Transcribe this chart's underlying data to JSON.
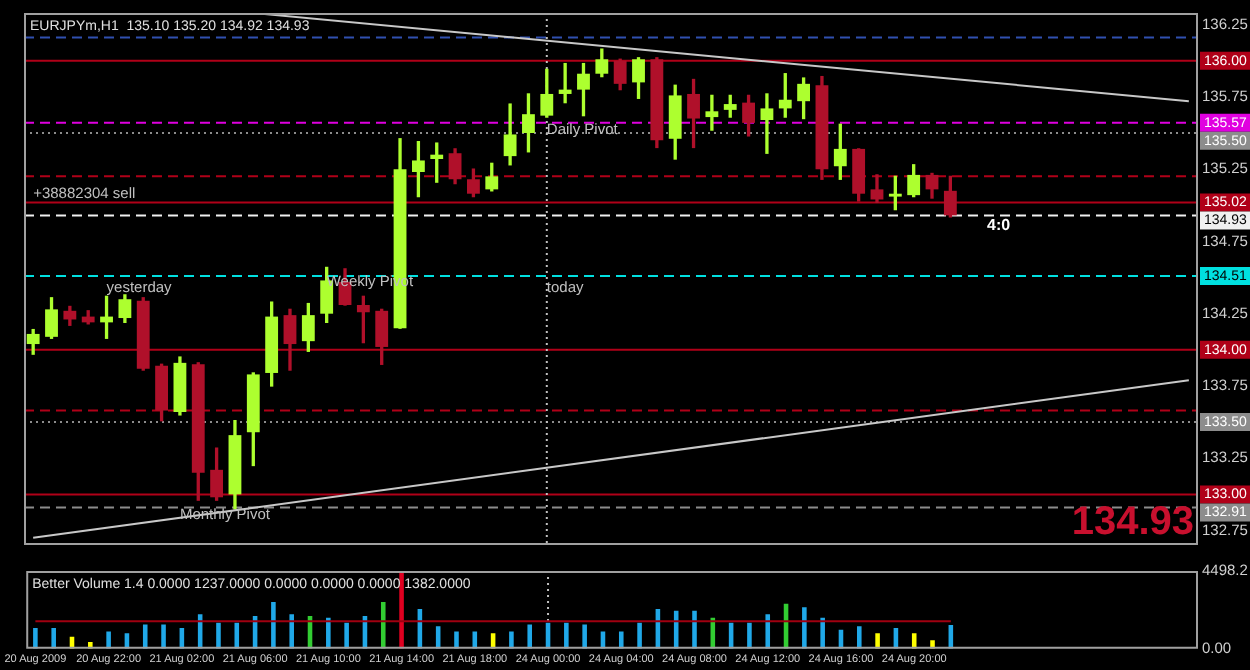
{
  "chart_data": [
    {
      "type": "candlestick",
      "title": "EURJPYm,H1  135.10 135.20 134.92 134.93",
      "categories": [
        "20 Aug 2009",
        null,
        null,
        null,
        "20 Aug 22:00",
        null,
        null,
        null,
        "21 Aug 02:00",
        null,
        null,
        null,
        "21 Aug 06:00",
        null,
        null,
        null,
        "21 Aug 10:00",
        null,
        null,
        null,
        "21 Aug 14:00",
        null,
        null,
        null,
        "21 Aug 18:00",
        null,
        null,
        null,
        "24 Aug 00:00",
        null,
        null,
        null,
        "24 Aug 04:00",
        null,
        null,
        null,
        "24 Aug 08:00",
        null,
        null,
        null,
        "24 Aug 12:00",
        null,
        null,
        null,
        "24 Aug 16:00",
        null,
        null,
        null,
        "24 Aug 20:00",
        null,
        null,
        null,
        null,
        null,
        null,
        null,
        null,
        null,
        null,
        null,
        null,
        null,
        null,
        null
      ],
      "ohlc": [
        [
          134.04,
          134.14,
          133.97,
          134.11
        ],
        [
          134.09,
          134.36,
          134.08,
          134.28
        ],
        [
          134.27,
          134.3,
          134.17,
          134.21
        ],
        [
          134.23,
          134.27,
          134.18,
          134.19
        ],
        [
          134.19,
          134.37,
          134.08,
          134.23
        ],
        [
          134.22,
          134.38,
          134.19,
          134.35
        ],
        [
          134.34,
          134.36,
          133.86,
          133.87
        ],
        [
          133.89,
          133.9,
          133.51,
          133.58
        ],
        [
          133.57,
          133.95,
          133.55,
          133.91
        ],
        [
          133.9,
          133.91,
          132.96,
          133.15
        ],
        [
          133.17,
          133.32,
          132.96,
          132.98
        ],
        [
          133.0,
          133.51,
          132.9,
          133.41
        ],
        [
          133.43,
          133.84,
          133.2,
          133.83
        ],
        [
          133.84,
          134.33,
          133.75,
          134.23
        ],
        [
          134.24,
          134.28,
          133.86,
          134.04
        ],
        [
          134.06,
          134.32,
          133.99,
          134.24
        ],
        [
          134.25,
          134.57,
          134.19,
          134.48
        ],
        [
          134.47,
          134.56,
          134.31,
          134.31
        ],
        [
          134.31,
          134.37,
          134.05,
          134.26
        ],
        [
          134.27,
          134.28,
          133.9,
          134.02
        ],
        [
          134.15,
          135.46,
          134.15,
          135.25
        ],
        [
          135.23,
          135.44,
          135.06,
          135.31
        ],
        [
          135.32,
          135.43,
          135.16,
          135.35
        ],
        [
          135.36,
          135.39,
          135.15,
          135.18
        ],
        [
          135.18,
          135.25,
          135.06,
          135.08
        ],
        [
          135.11,
          135.29,
          135.1,
          135.2
        ],
        [
          135.34,
          135.7,
          135.28,
          135.49
        ],
        [
          135.5,
          135.77,
          135.37,
          135.63
        ],
        [
          135.62,
          135.94,
          135.61,
          135.77
        ],
        [
          135.77,
          135.98,
          135.71,
          135.8
        ],
        [
          135.8,
          135.98,
          135.62,
          135.91
        ],
        [
          135.91,
          136.08,
          135.89,
          136.01
        ],
        [
          136.0,
          136.01,
          135.8,
          135.84
        ],
        [
          135.85,
          136.02,
          135.74,
          136.01
        ],
        [
          136.01,
          136.02,
          135.4,
          135.45
        ],
        [
          135.46,
          135.83,
          135.32,
          135.76
        ],
        [
          135.77,
          135.87,
          135.4,
          135.6
        ],
        [
          135.61,
          135.76,
          135.52,
          135.65
        ],
        [
          135.66,
          135.76,
          135.61,
          135.7
        ],
        [
          135.71,
          135.76,
          135.48,
          135.57
        ],
        [
          135.59,
          135.77,
          135.36,
          135.67
        ],
        [
          135.67,
          135.91,
          135.61,
          135.73
        ],
        [
          135.72,
          135.88,
          135.6,
          135.84
        ],
        [
          135.83,
          135.89,
          135.18,
          135.25
        ],
        [
          135.27,
          135.56,
          135.18,
          135.39
        ],
        [
          135.39,
          135.39,
          135.03,
          135.08
        ],
        [
          135.11,
          135.21,
          135.02,
          135.04
        ],
        [
          135.06,
          135.2,
          134.97,
          135.08
        ],
        [
          135.07,
          135.28,
          135.06,
          135.21
        ],
        [
          135.21,
          135.22,
          135.05,
          135.11
        ],
        [
          135.1,
          135.2,
          134.92,
          134.93
        ],
        null,
        null,
        null,
        null,
        null,
        null,
        null,
        null,
        null,
        null,
        null,
        null,
        null
      ],
      "colors": [
        "#adff2f",
        "#adff2f",
        "#b0102a",
        "#b0102a",
        "#adff2f",
        "#adff2f",
        "#b0102a",
        "#b0102a",
        "#adff2f",
        "#b0102a",
        "#b0102a",
        "#adff2f",
        "#adff2f",
        "#adff2f",
        "#b0102a",
        "#adff2f",
        "#adff2f",
        "#b0102a",
        "#b0102a",
        "#b0102a",
        "#adff2f",
        "#adff2f",
        "#adff2f",
        "#b0102a",
        "#b0102a",
        "#adff2f",
        "#adff2f",
        "#adff2f",
        "#adff2f",
        "#adff2f",
        "#adff2f",
        "#adff2f",
        "#b0102a",
        "#adff2f",
        "#b0102a",
        "#adff2f",
        "#b0102a",
        "#adff2f",
        "#adff2f",
        "#b0102a",
        "#adff2f",
        "#adff2f",
        "#adff2f",
        "#b0102a",
        "#adff2f",
        "#b0102a",
        "#b0102a",
        "#adff2f",
        "#adff2f",
        "#b0102a",
        "#b0102a",
        null,
        null,
        null,
        null,
        null,
        null,
        null,
        null,
        null,
        null,
        null,
        null,
        null
      ],
      "series": [
        {
          "type": "line",
          "color": "#c8c8c8",
          "values": [
            null,
            null,
            null,
            null,
            null,
            null,
            null,
            null,
            null,
            null,
            null,
            null,
            136.33,
            null,
            null,
            null,
            null,
            null,
            null,
            null,
            null,
            null,
            null,
            null,
            null,
            null,
            null,
            null,
            null,
            null,
            null,
            null,
            null,
            null,
            null,
            null,
            null,
            null,
            null,
            null,
            null,
            null,
            null,
            null,
            null,
            null,
            null,
            null,
            null,
            null,
            null,
            null,
            null,
            null,
            null,
            null,
            null,
            null,
            null,
            null,
            null,
            null,
            null,
            135.72
          ]
        },
        {
          "type": "line",
          "color": "#c8c8c8",
          "values": [
            132.7,
            null,
            null,
            null,
            null,
            null,
            null,
            null,
            null,
            null,
            null,
            null,
            null,
            null,
            null,
            null,
            null,
            null,
            null,
            null,
            null,
            null,
            null,
            null,
            null,
            null,
            null,
            null,
            null,
            null,
            null,
            null,
            null,
            null,
            null,
            null,
            null,
            null,
            null,
            null,
            null,
            null,
            null,
            null,
            null,
            null,
            null,
            null,
            null,
            null,
            null,
            null,
            null,
            null,
            null,
            null,
            null,
            null,
            null,
            null,
            null,
            null,
            null,
            133.79
          ]
        }
      ],
      "ylim": [
        132.65,
        136.33
      ],
      "yticks": [
        136.25,
        135.75,
        135.25,
        134.75,
        134.25,
        133.75,
        133.25,
        132.75
      ],
      "tick_labels": "y",
      "ref_lines": [
        {
          "axis": "y",
          "value": 136.16,
          "color": "#3050b0",
          "line_style": "dashed"
        },
        {
          "axis": "y",
          "value": 136.0,
          "label": "136.00",
          "color": "#b00018",
          "line_style": "solid"
        },
        {
          "axis": "y",
          "value": 135.57,
          "label": "135.57",
          "color": "#e000e0",
          "line_style": "dashed"
        },
        {
          "axis": "y",
          "value": 135.5,
          "label": "135.50",
          "color": "#8c8c8c",
          "line_style": "dotted"
        },
        {
          "axis": "y",
          "value": 135.2,
          "color": "#b00018",
          "line_style": "dashed"
        },
        {
          "axis": "y",
          "value": 135.02,
          "label": "135.02",
          "color": "#b00018",
          "line_style": "solid"
        },
        {
          "axis": "y",
          "value": 134.93,
          "label": "134.93",
          "color": "#f0f0f0",
          "line_style": "dashed"
        },
        {
          "axis": "y",
          "value": 134.51,
          "label": "134.51",
          "color": "#00e0e0",
          "line_style": "dashed"
        },
        {
          "axis": "y",
          "value": 134.0,
          "label": "134.00",
          "color": "#b00018",
          "line_style": "solid"
        },
        {
          "axis": "y",
          "value": 133.58,
          "color": "#b00018",
          "line_style": "dashed"
        },
        {
          "axis": "y",
          "value": 133.5,
          "label": "133.50",
          "color": "#8c8c8c",
          "line_style": "dotted"
        },
        {
          "axis": "y",
          "value": 133.0,
          "label": "133.00",
          "color": "#b00018",
          "line_style": "solid"
        },
        {
          "axis": "y",
          "value": 132.91,
          "label": "132.91",
          "color": "#8c8c8c",
          "line_style": "dashed"
        },
        {
          "axis": "x",
          "value": "24 Aug 00:00",
          "color": "#c0c0c0",
          "line_style": "dotted"
        }
      ],
      "annotations": [
        {
          "text": "Daily Pivot",
          "x": "24 Aug 00:00",
          "y": 135.52
        },
        {
          "text": "Weekly Pivot",
          "x": "21 Aug 10:00",
          "y": 134.47
        },
        {
          "text": "Monthly Pivot",
          "x": "21 Aug 02:00",
          "y": 132.86
        },
        {
          "text": "yesterday",
          "x": "20 Aug 22:00",
          "y": 134.43
        },
        {
          "text": "today",
          "x": "24 Aug 00:00",
          "y": 134.43
        },
        {
          "text": "+38882304 sell",
          "x": "20 Aug 2009",
          "y": 135.08
        },
        "4:0",
        "134.93"
      ]
    },
    {
      "type": "bar",
      "title": "Better Volume 1.4 0.0000 1237.0000 0.0000 0.0000 0.0000 1382.0000",
      "categories": [
        "20 Aug 2009",
        null,
        null,
        null,
        "20 Aug 22:00",
        null,
        null,
        null,
        "21 Aug 02:00",
        null,
        null,
        null,
        "21 Aug 06:00",
        null,
        null,
        null,
        "21 Aug 10:00",
        null,
        null,
        null,
        "21 Aug 14:00",
        null,
        null,
        null,
        "21 Aug 18:00",
        null,
        null,
        null,
        "24 Aug 00:00",
        null,
        null,
        null,
        "24 Aug 04:00",
        null,
        null,
        null,
        "24 Aug 08:00",
        null,
        null,
        null,
        "24 Aug 12:00",
        null,
        null,
        null,
        "24 Aug 16:00",
        null,
        null,
        null,
        "24 Aug 20:00",
        null,
        null,
        null,
        null,
        null,
        null,
        null,
        null,
        null,
        null,
        null,
        null,
        null,
        null,
        null
      ],
      "series": [
        {
          "type": "bar",
          "values": [
            1200,
            1200,
            700,
            400,
            1000,
            900,
            1400,
            1400,
            1200,
            2000,
            1500,
            1500,
            1900,
            2700,
            2000,
            1900,
            1800,
            1500,
            1900,
            2700,
            4400,
            2300,
            1300,
            1000,
            1000,
            900,
            1000,
            1400,
            1500,
            1500,
            1400,
            1000,
            1000,
            1500,
            2300,
            2200,
            2200,
            1800,
            1500,
            1500,
            2000,
            2600,
            2400,
            1800,
            1100,
            1300,
            900,
            1200,
            900,
            500,
            1382,
            null,
            null,
            null,
            null,
            null,
            null,
            null,
            null,
            null,
            null,
            null,
            null,
            null
          ],
          "colors": [
            "#20a8e8",
            "#20a8e8",
            "#ffff00",
            "#ffff00",
            "#20a8e8",
            "#20a8e8",
            "#20a8e8",
            "#20a8e8",
            "#20a8e8",
            "#20a8e8",
            "#20a8e8",
            "#20a8e8",
            "#20a8e8",
            "#20a8e8",
            "#20a8e8",
            "#32cd32",
            "#20a8e8",
            "#20a8e8",
            "#20a8e8",
            "#32cd32",
            "#e00020",
            "#20a8e8",
            "#20a8e8",
            "#20a8e8",
            "#20a8e8",
            "#ffff00",
            "#20a8e8",
            "#20a8e8",
            "#20a8e8",
            "#20a8e8",
            "#20a8e8",
            "#20a8e8",
            "#20a8e8",
            "#20a8e8",
            "#20a8e8",
            "#20a8e8",
            "#20a8e8",
            "#32cd32",
            "#20a8e8",
            "#20a8e8",
            "#20a8e8",
            "#32cd32",
            "#20a8e8",
            "#20a8e8",
            "#20a8e8",
            "#20a8e8",
            "#ffff00",
            "#20a8e8",
            "#ffff00",
            "#ffff00",
            "#20a8e8",
            null,
            null,
            null,
            null,
            null,
            null,
            null,
            null,
            null,
            null,
            null,
            null,
            null
          ]
        },
        {
          "type": "line",
          "color": "#a00010",
          "values": [
            1600,
            1600,
            1600,
            1600,
            1600,
            1600,
            1600,
            1600,
            1600,
            1600,
            1600,
            1600,
            1600,
            1600,
            1600,
            1600,
            1600,
            1600,
            1600,
            1600,
            1600,
            1600,
            1600,
            1600,
            1600,
            1600,
            1600,
            1600,
            1600,
            1600,
            1600,
            1600,
            1600,
            1600,
            1600,
            1600,
            1600,
            1600,
            1600,
            1600,
            1600,
            1600,
            1600,
            1600,
            1600,
            1600,
            1600,
            1600,
            1600,
            1600,
            1600,
            null,
            null,
            null,
            null,
            null,
            null,
            null,
            null,
            null,
            null,
            null,
            null,
            null
          ]
        }
      ],
      "ylim": [
        0,
        4498.2
      ],
      "yticks": [
        4498.2,
        {
          "value": 0,
          "label": "0.00"
        }
      ],
      "ref_lines": [
        {
          "axis": "x",
          "value": "24 Aug 00:00",
          "color": "#c0c0c0",
          "line_style": "dotted"
        }
      ]
    }
  ]
}
